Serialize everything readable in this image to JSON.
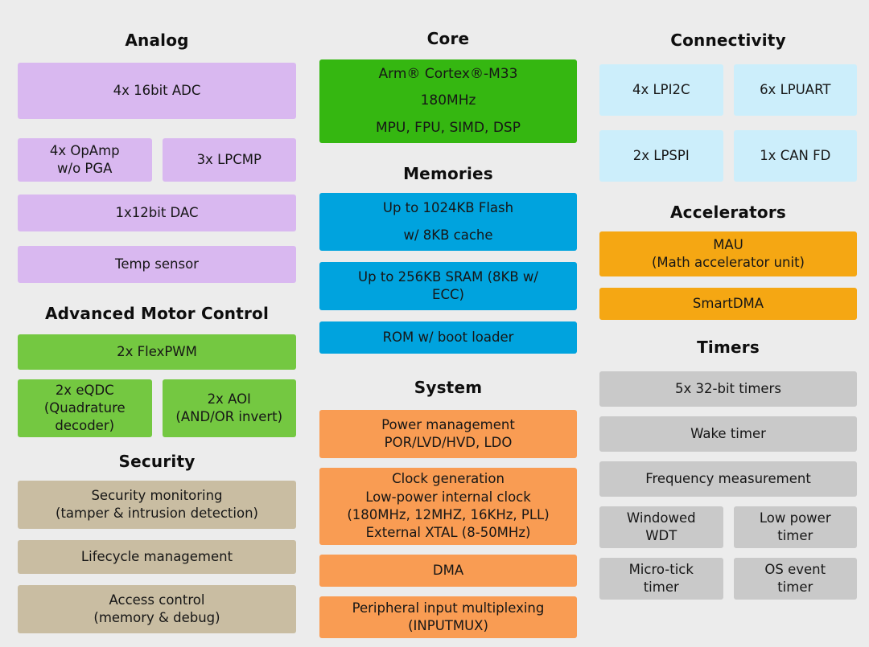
{
  "palette": {
    "background": "#ececec",
    "analog_purple": "#d9b8f0",
    "motor_green": "#74c841",
    "core_green": "#35b711",
    "memory_blue": "#00a3de",
    "system_orange": "#f99c53",
    "accelerator_amber": "#f5a713",
    "connectivity_cyan": "#cceefb",
    "timer_gray": "#c9c9c9",
    "security_tan": "#c9bda2",
    "text": "#161616"
  },
  "columns": {
    "left": {
      "analog": {
        "title": "Analog",
        "adc": "4x 16bit ADC",
        "opamp": "4x OpAmp\nw/o PGA",
        "lpcmp": "3x LPCMP",
        "dac": "1x12bit DAC",
        "temp": "Temp sensor"
      },
      "motor": {
        "title": "Advanced Motor Control",
        "flexpwm": "2x FlexPWM",
        "eqdc": "2x eQDC\n(Quadrature\ndecoder)",
        "aoi": "2x AOI\n(AND/OR invert)"
      },
      "security": {
        "title": "Security",
        "monitoring": "Security monitoring\n(tamper & intrusion detection)",
        "lifecycle": "Lifecycle management",
        "access": "Access control\n(memory & debug)"
      }
    },
    "middle": {
      "core": {
        "title": "Core",
        "cpu": "Arm® Cortex®-M33\n180MHz\nMPU, FPU, SIMD, DSP"
      },
      "memories": {
        "title": "Memories",
        "flash": "Up to 1024KB Flash\nw/ 8KB cache",
        "sram": "Up to 256KB SRAM (8KB w/\nECC)",
        "rom": "ROM w/ boot loader"
      },
      "system": {
        "title": "System",
        "power": "Power management\nPOR/LVD/HVD, LDO",
        "clock": "Clock generation\nLow-power internal clock\n(180MHz, 12MHZ, 16KHz, PLL)\nExternal XTAL (8-50MHz)",
        "dma": "DMA",
        "inputmux": "Peripheral input multiplexing\n(INPUTMUX)"
      }
    },
    "right": {
      "connectivity": {
        "title": "Connectivity",
        "lpi2c": "4x LPI2C",
        "lpuart": "6x LPUART",
        "lpspi": "2x LPSPI",
        "canfd": "1x CAN FD"
      },
      "accelerators": {
        "title": "Accelerators",
        "mau": "MAU\n(Math accelerator unit)",
        "smartdma": "SmartDMA"
      },
      "timers": {
        "title": "Timers",
        "timers32": "5x 32-bit timers",
        "wake": "Wake timer",
        "freq": "Frequency measurement",
        "wwdt": "Windowed\nWDT",
        "lptimer": "Low power\ntimer",
        "microtick": "Micro-tick\ntimer",
        "osevent": "OS event\ntimer"
      }
    }
  }
}
